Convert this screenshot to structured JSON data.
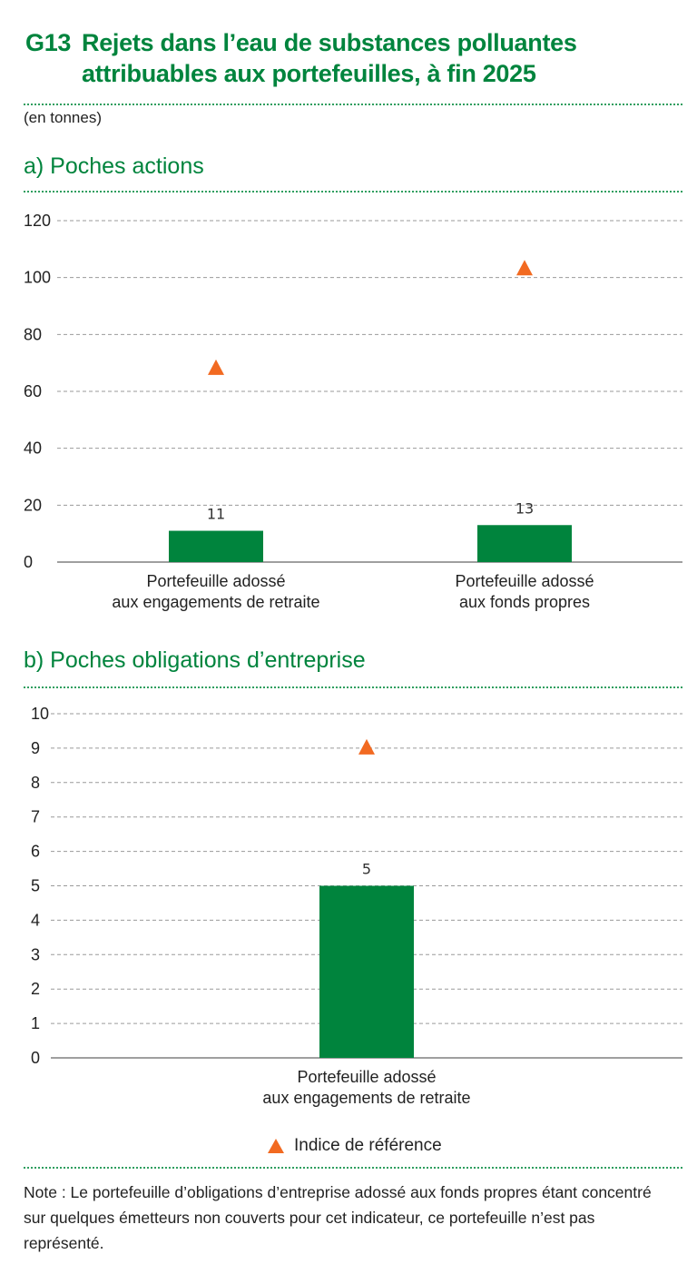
{
  "header": {
    "number": "G13",
    "title_line1": "Rejets dans l’eau de substances polluantes",
    "title_line2": "attribuables aux portefeuilles, à fin 2025",
    "unit": "(en tonnes)"
  },
  "colors": {
    "bar": "#00843d",
    "marker": "#f26a21",
    "accent": "#00843d"
  },
  "chart_data": [
    {
      "type": "bar",
      "title": "a)  Poches actions",
      "categories": [
        "Portefeuille adossé\naux engagements de retraite",
        "Portefeuille adossé\naux fonds propres"
      ],
      "series": [
        {
          "values": [
            11,
            13
          ],
          "data_labels": [
            "11",
            "13"
          ]
        },
        {
          "name": "Indice de référence",
          "type": "scatter",
          "marker": "triangle",
          "values": [
            68,
            103
          ]
        }
      ],
      "yticks": [
        "0",
        "20",
        "40",
        "60",
        "80",
        "100",
        "120"
      ],
      "ylim": [
        0,
        120
      ],
      "grid": true
    },
    {
      "type": "bar",
      "title": "b)  Poches obligations d’entreprise",
      "categories": [
        "Portefeuille adossé\naux engagements de retraite"
      ],
      "series": [
        {
          "values": [
            5
          ],
          "data_labels": [
            "5"
          ]
        },
        {
          "name": "Indice de référence",
          "type": "scatter",
          "marker": "triangle",
          "values": [
            9
          ]
        }
      ],
      "yticks": [
        "0",
        "1",
        "2",
        "3",
        "4",
        "5",
        "6",
        "7",
        "8",
        "9",
        "10"
      ],
      "ylim": [
        0,
        10
      ],
      "grid": true
    }
  ],
  "legend": {
    "label": "Indice de référence",
    "placement": "bottom"
  },
  "note": "Note : Le portefeuille d’obligations d’entreprise adossé aux fonds propres étant concentré sur quelques émetteurs non couverts pour cet indicateur, ce portefeuille n’est pas représenté."
}
